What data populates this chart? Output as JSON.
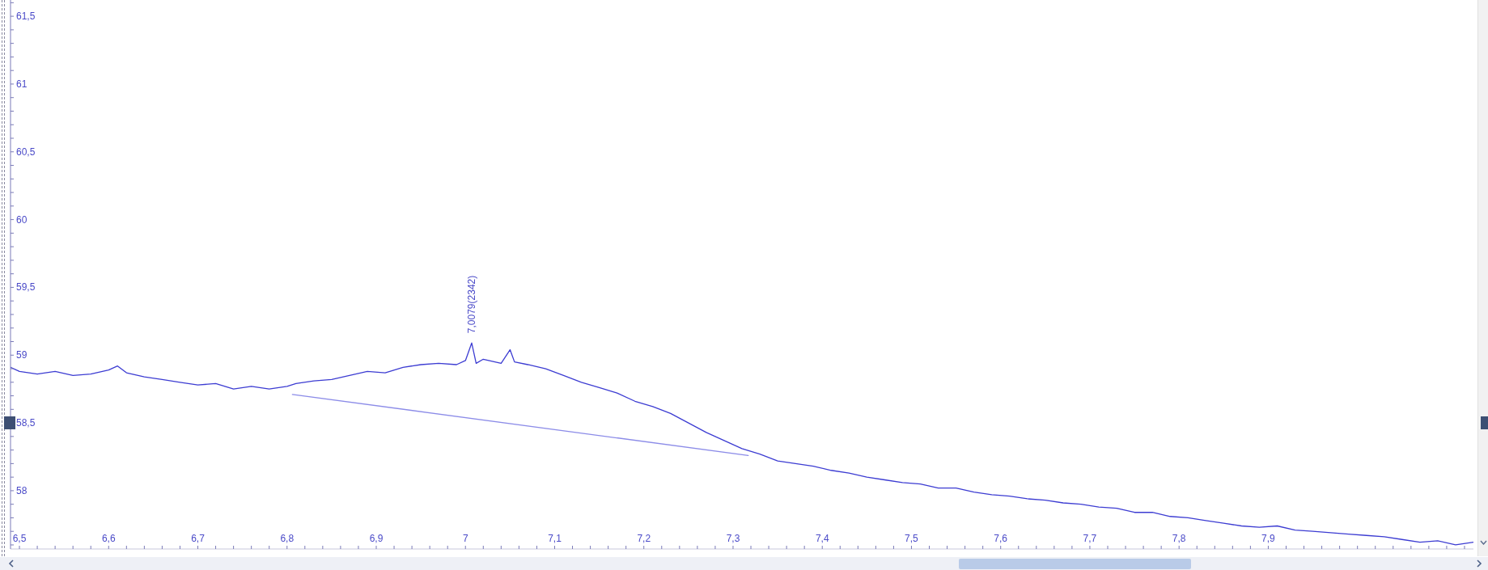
{
  "chart_data": {
    "type": "line",
    "marker": "none",
    "line_style": "solid",
    "annotations": [
      {
        "text": "7,0079(2342)",
        "x": 7.007,
        "y": 59.09
      }
    ],
    "series": [
      {
        "color": "#3c3cd2",
        "x": [
          6.49,
          6.5,
          6.52,
          6.54,
          6.56,
          6.58,
          6.6,
          6.61,
          6.62,
          6.64,
          6.66,
          6.68,
          6.7,
          6.72,
          6.74,
          6.76,
          6.78,
          6.8,
          6.81,
          6.83,
          6.85,
          6.87,
          6.89,
          6.91,
          6.93,
          6.95,
          6.97,
          6.99,
          7.0,
          7.007,
          7.012,
          7.02,
          7.04,
          7.05,
          7.055,
          7.07,
          7.09,
          7.11,
          7.13,
          7.15,
          7.17,
          7.19,
          7.21,
          7.23,
          7.25,
          7.27,
          7.29,
          7.31,
          7.33,
          7.35,
          7.37,
          7.39,
          7.41,
          7.43,
          7.45,
          7.47,
          7.49,
          7.51,
          7.53,
          7.55,
          7.57,
          7.59,
          7.61,
          7.63,
          7.65,
          7.67,
          7.69,
          7.71,
          7.73,
          7.75,
          7.77,
          7.79,
          7.81,
          7.83,
          7.85,
          7.87,
          7.89,
          7.91,
          7.93,
          7.95,
          7.97,
          7.99,
          8.01,
          8.03,
          8.05,
          8.07,
          8.09,
          8.11,
          8.13
        ],
        "values": [
          58.91,
          58.88,
          58.86,
          58.88,
          58.85,
          58.86,
          58.89,
          58.92,
          58.87,
          58.84,
          58.82,
          58.8,
          58.78,
          58.79,
          58.75,
          58.77,
          58.75,
          58.77,
          58.79,
          58.81,
          58.82,
          58.85,
          58.88,
          58.87,
          58.91,
          58.93,
          58.94,
          58.93,
          58.96,
          59.09,
          58.94,
          58.97,
          58.94,
          59.04,
          58.95,
          58.93,
          58.9,
          58.85,
          58.8,
          58.76,
          58.72,
          58.66,
          58.62,
          58.57,
          58.5,
          58.43,
          58.37,
          58.31,
          58.27,
          58.22,
          58.2,
          58.18,
          58.15,
          58.13,
          58.1,
          58.08,
          58.06,
          58.05,
          58.02,
          58.02,
          57.99,
          57.97,
          57.96,
          57.94,
          57.93,
          57.91,
          57.9,
          57.88,
          57.87,
          57.84,
          57.84,
          57.81,
          57.8,
          57.78,
          57.76,
          57.74,
          57.73,
          57.74,
          57.71,
          57.7,
          57.69,
          57.68,
          57.67,
          57.66,
          57.64,
          57.62,
          57.63,
          57.6,
          57.62
        ]
      },
      {
        "color": "#8c8ce8",
        "x": [
          6.806,
          7.317
        ],
        "values": [
          58.71,
          58.26
        ]
      }
    ],
    "xlim": [
      6.49,
      8.13
    ],
    "ylim": [
      57.57,
      61.62
    ],
    "xticks": [
      {
        "value": 6.5,
        "label": "6,5"
      },
      {
        "value": 6.52,
        "label": null
      },
      {
        "value": 6.54,
        "label": null
      },
      {
        "value": 6.56,
        "label": null
      },
      {
        "value": 6.58,
        "label": null
      },
      {
        "value": 6.6,
        "label": "6,6"
      },
      {
        "value": 6.62,
        "label": null
      },
      {
        "value": 6.64,
        "label": null
      },
      {
        "value": 6.66,
        "label": null
      },
      {
        "value": 6.68,
        "label": null
      },
      {
        "value": 6.7,
        "label": "6,7"
      },
      {
        "value": 6.72,
        "label": null
      },
      {
        "value": 6.74,
        "label": null
      },
      {
        "value": 6.76,
        "label": null
      },
      {
        "value": 6.78,
        "label": null
      },
      {
        "value": 6.8,
        "label": "6,8"
      },
      {
        "value": 6.82,
        "label": null
      },
      {
        "value": 6.84,
        "label": null
      },
      {
        "value": 6.86,
        "label": null
      },
      {
        "value": 6.88,
        "label": null
      },
      {
        "value": 6.9,
        "label": "6,9"
      },
      {
        "value": 6.92,
        "label": null
      },
      {
        "value": 6.94,
        "label": null
      },
      {
        "value": 6.96,
        "label": null
      },
      {
        "value": 6.98,
        "label": null
      },
      7,
      {
        "value": 7.02,
        "label": null
      },
      {
        "value": 7.04,
        "label": null
      },
      {
        "value": 7.06,
        "label": null
      },
      {
        "value": 7.08,
        "label": null
      },
      {
        "value": 7.1,
        "label": "7,1"
      },
      {
        "value": 7.12,
        "label": null
      },
      {
        "value": 7.14,
        "label": null
      },
      {
        "value": 7.16,
        "label": null
      },
      {
        "value": 7.18,
        "label": null
      },
      {
        "value": 7.2,
        "label": "7,2"
      },
      {
        "value": 7.22,
        "label": null
      },
      {
        "value": 7.24,
        "label": null
      },
      {
        "value": 7.26,
        "label": null
      },
      {
        "value": 7.28,
        "label": null
      },
      {
        "value": 7.3,
        "label": "7,3"
      },
      {
        "value": 7.32,
        "label": null
      },
      {
        "value": 7.34,
        "label": null
      },
      {
        "value": 7.36,
        "label": null
      },
      {
        "value": 7.38,
        "label": null
      },
      {
        "value": 7.4,
        "label": "7,4"
      },
      {
        "value": 7.42,
        "label": null
      },
      {
        "value": 7.44,
        "label": null
      },
      {
        "value": 7.46,
        "label": null
      },
      {
        "value": 7.48,
        "label": null
      },
      {
        "value": 7.5,
        "label": "7,5"
      },
      {
        "value": 7.52,
        "label": null
      },
      {
        "value": 7.54,
        "label": null
      },
      {
        "value": 7.56,
        "label": null
      },
      {
        "value": 7.58,
        "label": null
      },
      {
        "value": 7.6,
        "label": "7,6"
      },
      {
        "value": 7.62,
        "label": null
      },
      {
        "value": 7.64,
        "label": null
      },
      {
        "value": 7.66,
        "label": null
      },
      {
        "value": 7.68,
        "label": null
      },
      {
        "value": 7.7,
        "label": "7,7"
      },
      {
        "value": 7.72,
        "label": null
      },
      {
        "value": 7.74,
        "label": null
      },
      {
        "value": 7.76,
        "label": null
      },
      {
        "value": 7.78,
        "label": null
      },
      {
        "value": 7.8,
        "label": "7,8"
      },
      {
        "value": 7.82,
        "label": null
      },
      {
        "value": 7.84,
        "label": null
      },
      {
        "value": 7.86,
        "label": null
      },
      {
        "value": 7.88,
        "label": null
      },
      {
        "value": 7.9,
        "label": "7,9"
      },
      {
        "value": 7.92,
        "label": null
      },
      {
        "value": 7.94,
        "label": null
      },
      {
        "value": 7.96,
        "label": null
      },
      {
        "value": 7.98,
        "label": null
      },
      {
        "value": 8,
        "label": null
      },
      {
        "value": 8.02,
        "label": null
      },
      {
        "value": 8.04,
        "label": null
      },
      {
        "value": 8.06,
        "label": null
      },
      {
        "value": 8.08,
        "label": null
      },
      {
        "value": 8.1,
        "label": null
      },
      {
        "value": 8.12,
        "label": null
      }
    ],
    "yticks": [
      {
        "value": 57.6,
        "label": null
      },
      {
        "value": 57.7,
        "label": null
      },
      {
        "value": 57.8,
        "label": null
      },
      {
        "value": 57.9,
        "label": null
      },
      58,
      {
        "value": 58.1,
        "label": null
      },
      {
        "value": 58.2,
        "label": null
      },
      {
        "value": 58.3,
        "label": null
      },
      {
        "value": 58.4,
        "label": null
      },
      {
        "value": 58.5,
        "label": "58,5"
      },
      {
        "value": 58.6,
        "label": null
      },
      {
        "value": 58.7,
        "label": null
      },
      {
        "value": 58.8,
        "label": null
      },
      {
        "value": 58.9,
        "label": null
      },
      59,
      {
        "value": 59.1,
        "label": null
      },
      {
        "value": 59.2,
        "label": null
      },
      {
        "value": 59.3,
        "label": null
      },
      {
        "value": 59.4,
        "label": null
      },
      {
        "value": 59.5,
        "label": "59,5"
      },
      {
        "value": 59.6,
        "label": null
      },
      {
        "value": 59.7,
        "label": null
      },
      {
        "value": 59.8,
        "label": null
      },
      {
        "value": 59.9,
        "label": null
      },
      60,
      {
        "value": 60.1,
        "label": null
      },
      {
        "value": 60.2,
        "label": null
      },
      {
        "value": 60.3,
        "label": null
      },
      {
        "value": 60.4,
        "label": null
      },
      {
        "value": 60.5,
        "label": "60,5"
      },
      {
        "value": 60.6,
        "label": null
      },
      {
        "value": 60.7,
        "label": null
      },
      {
        "value": 60.8,
        "label": null
      },
      {
        "value": 60.9,
        "label": null
      },
      61,
      {
        "value": 61.1,
        "label": null
      },
      {
        "value": 61.2,
        "label": null
      },
      {
        "value": 61.3,
        "label": null
      },
      {
        "value": 61.4,
        "label": null
      },
      {
        "value": 61.5,
        "label": "61,5"
      },
      {
        "value": 61.6,
        "label": null
      }
    ]
  }
}
